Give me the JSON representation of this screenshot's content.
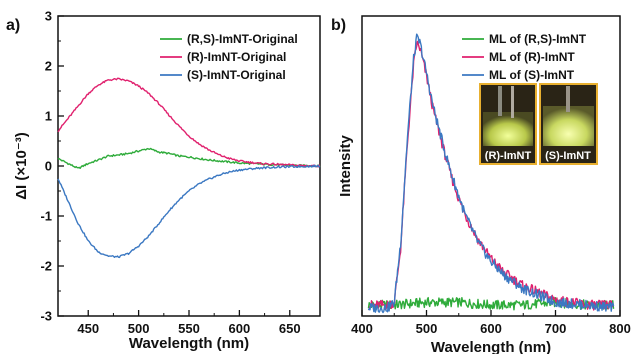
{
  "chart_data": [
    {
      "panel": "a)",
      "type": "line",
      "xlabel": "Wavelength (nm)",
      "ylabel": "ΔI (×10⁻³)",
      "xlim": [
        420,
        680
      ],
      "ylim": [
        -3,
        3
      ],
      "x_ticks": [
        450,
        500,
        550,
        600,
        650
      ],
      "y_ticks": [
        -3,
        -2,
        -1,
        0,
        1,
        2,
        3
      ],
      "grid": false,
      "legend_position": "top-right",
      "series": [
        {
          "name": "(R,S)-ImNT-Original",
          "color": "#2eab3a",
          "x": [
            420,
            430,
            440,
            450,
            460,
            470,
            480,
            490,
            500,
            510,
            520,
            530,
            540,
            550,
            560,
            570,
            580,
            590,
            600,
            620,
            640,
            660,
            680
          ],
          "y": [
            0.15,
            0.05,
            -0.05,
            0.05,
            0.12,
            0.2,
            0.22,
            0.25,
            0.3,
            0.35,
            0.28,
            0.25,
            0.2,
            0.18,
            0.15,
            0.12,
            0.1,
            0.08,
            0.06,
            0.04,
            0.02,
            0.01,
            0.0
          ]
        },
        {
          "name": "(R)-ImNT-Original",
          "color": "#e0216e",
          "x": [
            420,
            430,
            440,
            450,
            460,
            470,
            480,
            490,
            500,
            510,
            520,
            530,
            540,
            550,
            560,
            570,
            580,
            590,
            600,
            620,
            640,
            660,
            680
          ],
          "y": [
            0.7,
            0.95,
            1.2,
            1.45,
            1.62,
            1.72,
            1.74,
            1.7,
            1.6,
            1.45,
            1.25,
            1.02,
            0.8,
            0.6,
            0.44,
            0.32,
            0.22,
            0.15,
            0.1,
            0.05,
            0.03,
            0.01,
            0.0
          ]
        },
        {
          "name": "(S)-ImNT-Original",
          "color": "#3b78c2",
          "x": [
            420,
            430,
            440,
            450,
            460,
            470,
            480,
            490,
            500,
            510,
            520,
            530,
            540,
            550,
            560,
            570,
            580,
            590,
            600,
            620,
            640,
            660,
            680
          ],
          "y": [
            -0.25,
            -0.7,
            -1.15,
            -1.5,
            -1.72,
            -1.8,
            -1.82,
            -1.75,
            -1.6,
            -1.4,
            -1.15,
            -0.9,
            -0.68,
            -0.5,
            -0.36,
            -0.26,
            -0.18,
            -0.12,
            -0.08,
            -0.04,
            -0.02,
            -0.01,
            0.0
          ]
        }
      ]
    },
    {
      "panel": "b)",
      "type": "line",
      "xlabel": "Wavelength (nm)",
      "ylabel": "Intensity",
      "xlim": [
        400,
        800
      ],
      "ylim": [
        0,
        1.1
      ],
      "x_ticks": [
        400,
        500,
        600,
        700,
        800
      ],
      "grid": false,
      "legend_position": "top-right",
      "series": [
        {
          "name": "ML of (R,S)-ImNT",
          "color": "#2eab3a",
          "x": [
            410,
            450,
            500,
            550,
            600,
            650,
            700,
            750,
            790
          ],
          "y": [
            0.04,
            0.04,
            0.05,
            0.05,
            0.04,
            0.04,
            0.05,
            0.04,
            0.04
          ]
        },
        {
          "name": "ML of (R)-ImNT",
          "color": "#e0216e",
          "x": [
            410,
            440,
            450,
            460,
            470,
            480,
            485,
            490,
            500,
            510,
            520,
            530,
            540,
            550,
            560,
            580,
            600,
            620,
            650,
            680,
            700,
            750,
            790
          ],
          "y": [
            0.04,
            0.04,
            0.05,
            0.25,
            0.62,
            0.92,
            1.0,
            0.98,
            0.88,
            0.76,
            0.67,
            0.58,
            0.5,
            0.43,
            0.37,
            0.28,
            0.21,
            0.16,
            0.11,
            0.08,
            0.06,
            0.04,
            0.04
          ]
        },
        {
          "name": "ML of (S)-ImNT",
          "color": "#3b78c2",
          "x": [
            410,
            440,
            450,
            460,
            470,
            480,
            485,
            490,
            500,
            510,
            520,
            530,
            540,
            550,
            560,
            580,
            600,
            620,
            650,
            680,
            700,
            750,
            790
          ],
          "y": [
            0.03,
            0.03,
            0.05,
            0.27,
            0.64,
            0.94,
            1.02,
            1.0,
            0.89,
            0.77,
            0.68,
            0.59,
            0.51,
            0.44,
            0.37,
            0.27,
            0.2,
            0.15,
            0.1,
            0.07,
            0.05,
            0.04,
            0.03
          ]
        }
      ],
      "inset": {
        "captions": [
          "(R)-ImNT",
          "(S)-ImNT"
        ]
      }
    }
  ]
}
